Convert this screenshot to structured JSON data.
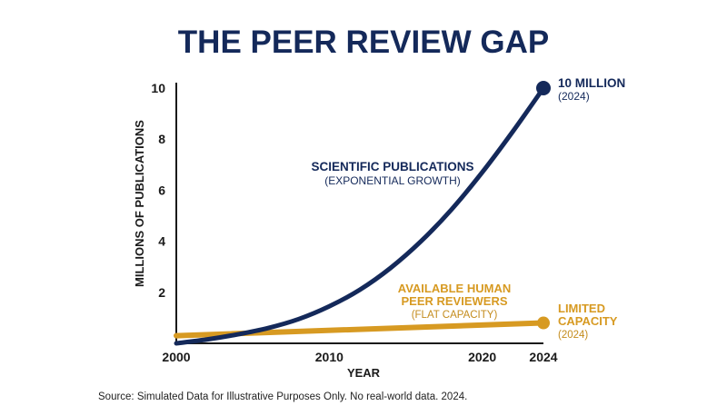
{
  "chart_data": {
    "type": "line",
    "title": "THE PEER REVIEW GAP",
    "xlabel": "YEAR",
    "ylabel": "MILLIONS OF PUBLICATIONS",
    "xlim": [
      2000,
      2024
    ],
    "ylim": [
      0,
      10
    ],
    "x_ticks": [
      "2000",
      "2010",
      "2020",
      "2024"
    ],
    "y_ticks": [
      "2",
      "4",
      "6",
      "8",
      "10"
    ],
    "grid": false,
    "series": [
      {
        "name": "SCIENTIFIC PUBLICATIONS",
        "sublabel": "(EXPONENTIAL GROWTH)",
        "color": "#14295a",
        "x": [
          2000,
          2002,
          2004,
          2006,
          2008,
          2010,
          2012,
          2014,
          2016,
          2018,
          2020,
          2022,
          2024
        ],
        "y": [
          0.0,
          0.15,
          0.35,
          0.6,
          0.95,
          1.45,
          2.1,
          2.95,
          4.0,
          5.25,
          6.7,
          8.3,
          10.0
        ]
      },
      {
        "name": "AVAILABLE HUMAN PEER REVIEWERS",
        "sublabel": "(FLAT CAPACITY)",
        "color": "#d79a22",
        "x": [
          2000,
          2024
        ],
        "y": [
          0.3,
          0.8
        ]
      }
    ],
    "annotations": {
      "pub_end_value": "10 MILLION",
      "pub_end_year": "(2024)",
      "rev_end_line1": "LIMITED",
      "rev_end_line2": "CAPACITY",
      "rev_end_year": "(2024)",
      "rev_label_line1": "AVAILABLE HUMAN",
      "rev_label_line2": "PEER REVIEWERS",
      "rev_label_sub": "(FLAT CAPACITY)",
      "pub_label": "SCIENTIFIC PUBLICATIONS",
      "pub_label_sub": "(EXPONENTIAL GROWTH)"
    },
    "source": "Source: Simulated Data for Illustrative Purposes Only. No real-world data. 2024."
  }
}
